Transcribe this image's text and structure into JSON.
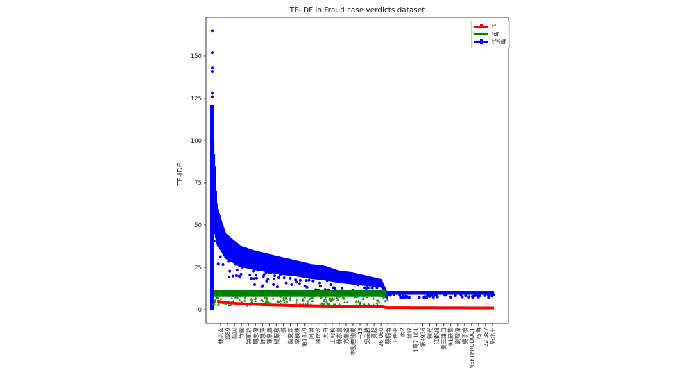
{
  "chart_data": {
    "type": "scatter",
    "title": "TF-IDF in Fraud case verdicts dataset",
    "xlabel": "",
    "ylabel": "TF-IDF",
    "ylim": [
      -8,
      170
    ],
    "yticks": [
      0,
      25,
      50,
      75,
      100,
      125,
      150
    ],
    "grid": false,
    "legend_position": "upper right",
    "legend": [
      "tf",
      "idf",
      "tf*idf"
    ],
    "colors": {
      "tf": "#ff0000",
      "idf": "#008000",
      "tf*idf": "#0000ff"
    },
    "xtick_labels": [
      "林冼玄",
      "翁89",
      "認因",
      "竹園",
      "吳家穎",
      "周志偉",
      "許慧萍",
      "陳忠廣",
      "楊振嘉",
      "鑽",
      "詹東霖",
      "李棟穗",
      "第1479",
      "阿爾",
      "陳玟玲",
      "大白",
      "王莉莉",
      "林亦崑",
      "方春盛",
      "不動產物業",
      "+15",
      "吳品勝",
      "資起",
      "26,060",
      "蔡柄崙",
      "王佳奕",
      "雨2",
      "發收",
      "1萬7,181",
      "第4936",
      "微光",
      "江郡絡",
      "愛三路口",
      "91蘇葦",
      "劉聰偉",
      "吳子楨",
      "NEFTPRODUCT",
      "75角",
      "22,387",
      "新北王"
    ],
    "series": [
      {
        "name": "tf",
        "marker": "+",
        "description": "Decreasing curve from ~5 at the start to ~1 at the end, step-like plateaus",
        "x_frac": [
          0.02,
          0.05,
          0.1,
          0.2,
          0.3,
          0.4,
          0.5,
          0.6,
          0.62,
          0.8,
          1.0
        ],
        "values": [
          5.0,
          4.2,
          3.5,
          2.8,
          2.4,
          2.1,
          1.9,
          1.8,
          1.2,
          1.1,
          1.0
        ]
      },
      {
        "name": "idf",
        "marker": "^",
        "description": "Dense band at ~8-11 up to ~60% of x range, scattered points 2-8 below it",
        "band_min": 7.5,
        "band_max": 11.5,
        "x_end_frac": 0.62
      },
      {
        "name": "tf*idf",
        "marker": "*",
        "description": "Spike near x start reaching max ~165, decaying envelope with steps, final plateau ~10",
        "outliers": [
          165,
          152,
          143,
          141,
          128,
          126
        ],
        "envelope_x_frac": [
          0.0,
          0.02,
          0.05,
          0.1,
          0.15,
          0.2,
          0.25,
          0.3,
          0.35,
          0.4,
          0.45,
          0.5,
          0.6,
          0.62,
          1.0
        ],
        "envelope_top": [
          121,
          60,
          45,
          38,
          35,
          33,
          31,
          29,
          27,
          26,
          23,
          22,
          18,
          11,
          11
        ],
        "envelope_bottom": [
          0,
          20,
          18,
          15,
          14,
          13,
          12,
          12,
          11,
          10,
          10,
          9,
          9,
          7,
          7
        ]
      }
    ]
  }
}
